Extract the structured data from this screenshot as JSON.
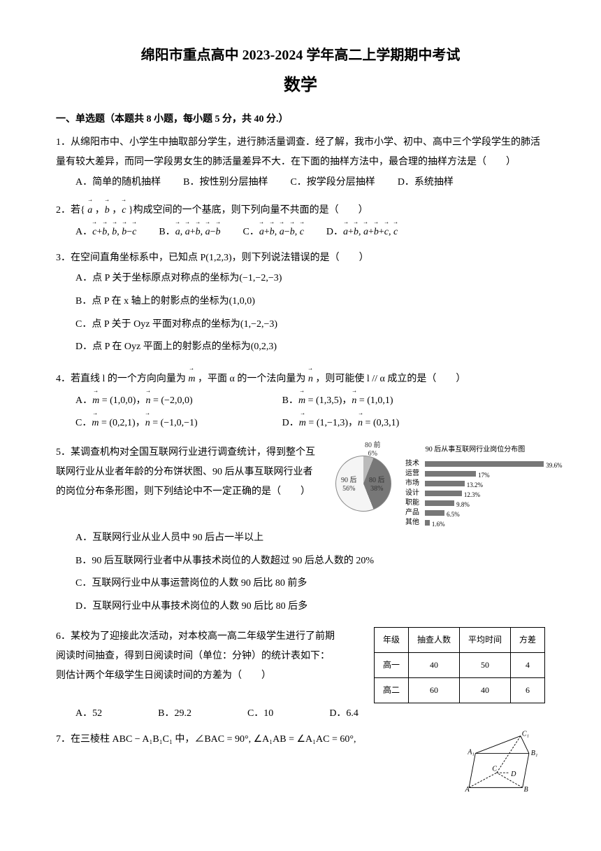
{
  "header": {
    "title": "绵阳市重点高中 2023-2024 学年高二上学期期中考试",
    "subject": "数学"
  },
  "section1": {
    "header": "一、单选题（本题共 8 小题，每小题 5 分，共 40 分.）"
  },
  "q1": {
    "text": "1．从绵阳市中、小学生中抽取部分学生，进行肺活量调查．经了解，我市小学、初中、高中三个学段学生的肺活量有较大差异，而同一学段男女生的肺活量差异不大．在下面的抽样方法中，最合理的抽样方法是（　　）",
    "A": "A．简单的随机抽样",
    "B": "B．按性别分层抽样",
    "C": "C．按学段分层抽样",
    "D": "D．系统抽样"
  },
  "q2": {
    "text_pre": "2．若{",
    "text_mid": "}构成空间的一个基底，则下列向量不共面的是（　　）"
  },
  "q3": {
    "text": "3．在空间直角坐标系中，已知点 P(1,2,3)，则下列说法错误的是（　　）",
    "A": "A．点 P 关于坐标原点对称点的坐标为(−1,−2,−3)",
    "B": "B．点 P 在 x 轴上的射影点的坐标为(1,0,0)",
    "C": "C．点 P 关于 Oyz 平面对称点的坐标为(1,−2,−3)",
    "D": "D．点 P 在 Oyz 平面上的射影点的坐标为(0,2,3)"
  },
  "q4": {
    "text_pre": "4．若直线 l 的一个方向向量为",
    "text_mid": "，平面 α 的一个法向量为",
    "text_post": "，则可能使 l // α 成立的是（　　）"
  },
  "q5": {
    "line1": "5．某调查机构对全国互联网行业进行调查统计，得到整个互",
    "line2": "联网行业从业者年龄的分布饼状图、90 后从事互联网行业者",
    "line3": "的岗位分布条形图，则下列结论中不一定正确的是（　　）",
    "A": "A．互联网行业从业人员中 90 后占一半以上",
    "B": "B．90 后互联网行业者中从事技术岗位的人数超过 90 后总人数的 20%",
    "C": "C．互联网行业中从事运营岗位的人数 90 后比 80 前多",
    "D": "D．互联网行业中从事技术岗位的人数 90 后比 80 后多"
  },
  "q6": {
    "line1": "6．某校为了迎接此次活动，对本校高一高二年级学生进行了前期",
    "line2": "阅读时间抽查，得到日阅读时间（单位：分钟）的统计表如下：",
    "line3": "则估计两个年级学生日阅读时间的方差为（　　）",
    "A": "A．52",
    "B": "B．29.2",
    "C": "C．10",
    "D": "D．6.4"
  },
  "q7": {
    "text": "7．在三棱柱 ABC − A₁B₁C₁ 中，∠BAC = 90°, ∠A₁AB = ∠A₁AC = 60°,"
  },
  "pie": {
    "slices": [
      {
        "label": "80 前",
        "value": "6%",
        "color": "#bbbbbb"
      },
      {
        "label": "90 后",
        "value": "56%",
        "color": "#f5f5f5"
      },
      {
        "label": "80 后",
        "value": "38%",
        "color": "#777777"
      }
    ],
    "background_color": "#ffffff"
  },
  "bars": {
    "title": "90 后从事互联网行业岗位分布图",
    "max_pct": 40,
    "bar_color": "#777777",
    "items": [
      {
        "label": "技术",
        "value": 39.6,
        "text": "39.6%"
      },
      {
        "label": "运营",
        "value": 17.0,
        "text": "17%"
      },
      {
        "label": "市场",
        "value": 13.2,
        "text": "13.2%"
      },
      {
        "label": "设计",
        "value": 12.3,
        "text": "12.3%"
      },
      {
        "label": "职能",
        "value": 9.8,
        "text": "9.8%"
      },
      {
        "label": "产品",
        "value": 6.5,
        "text": "6.5%"
      },
      {
        "label": "其他",
        "value": 1.6,
        "text": "1.6%"
      }
    ]
  },
  "table": {
    "headers": [
      "年级",
      "抽查人数",
      "平均时间",
      "方差"
    ],
    "rows": [
      [
        "高一",
        "40",
        "50",
        "4"
      ],
      [
        "高二",
        "60",
        "40",
        "6"
      ]
    ]
  },
  "prism": {
    "labels": {
      "A": "A",
      "B": "B",
      "C": "C",
      "D": "D",
      "A1": "A₁",
      "B1": "B₁",
      "C1": "C₁"
    }
  }
}
